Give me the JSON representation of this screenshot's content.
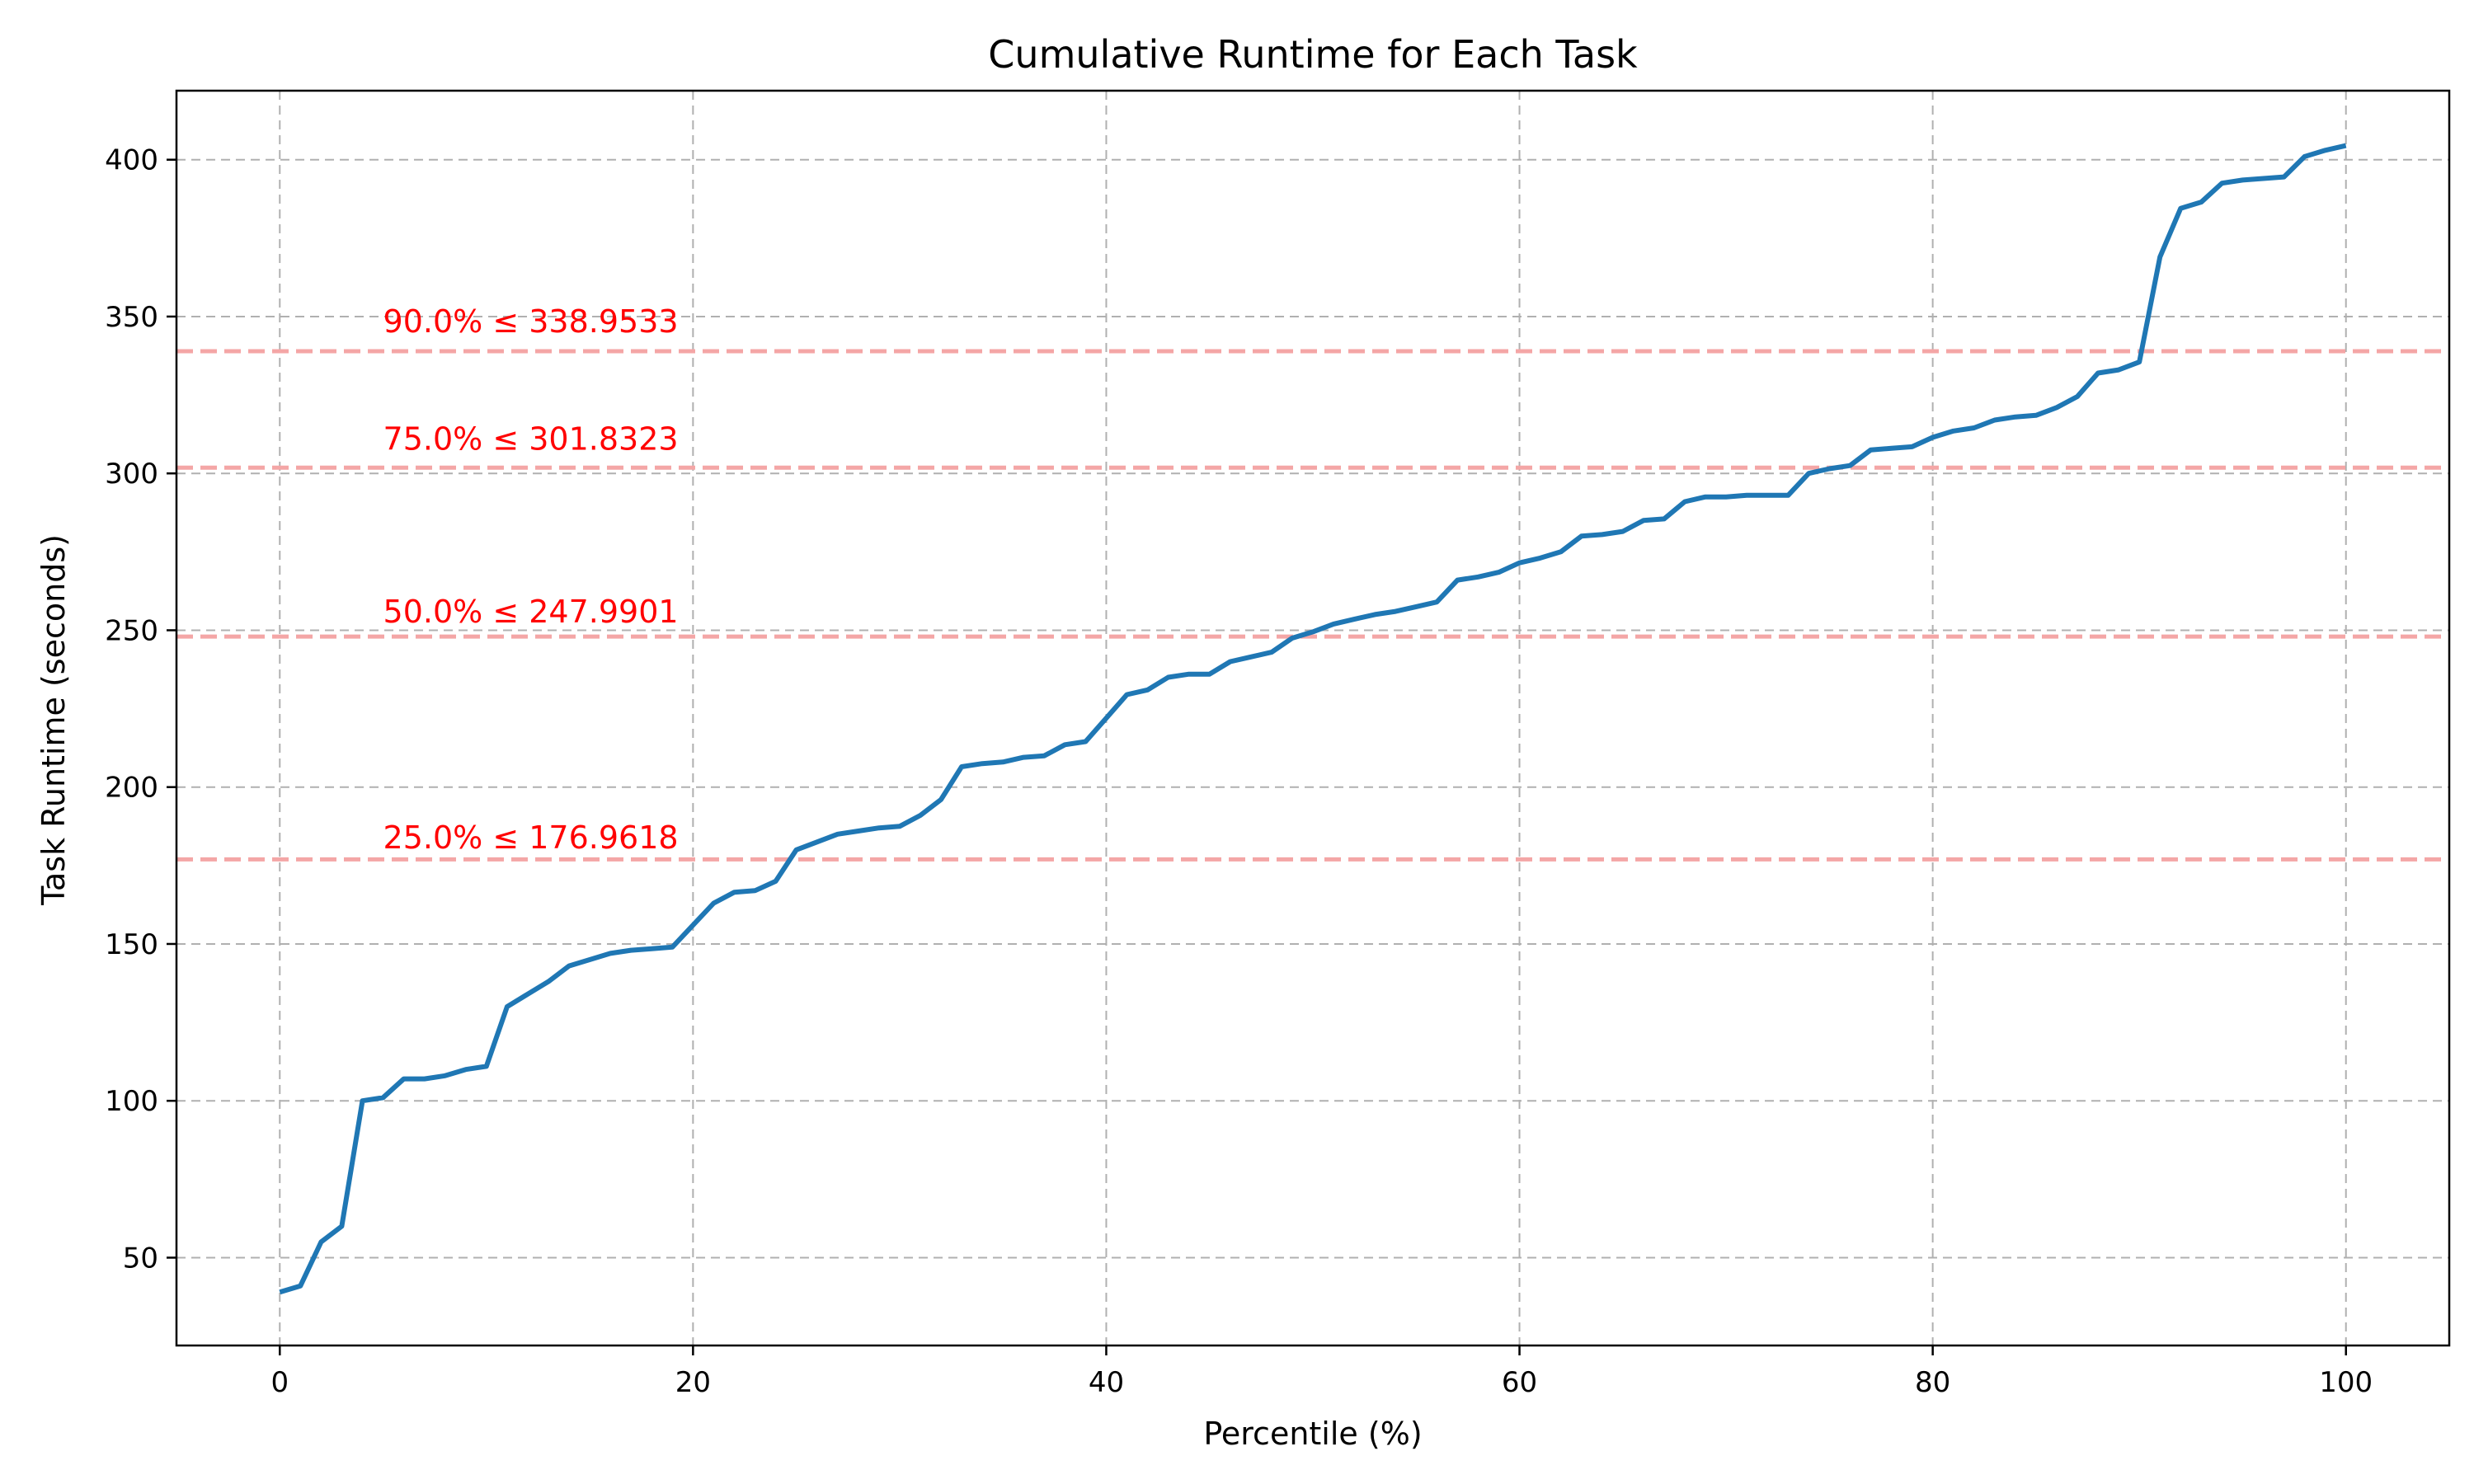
{
  "chart_data": {
    "type": "line",
    "title": "Cumulative Runtime for Each Task",
    "xlabel": "Percentile (%)",
    "ylabel": "Task Runtime (seconds)",
    "xlim": [
      -5,
      105
    ],
    "ylim": [
      22,
      422
    ],
    "x_ticks": [
      0,
      20,
      40,
      60,
      80,
      100
    ],
    "x_tick_labels": [
      "0",
      "20",
      "40",
      "60",
      "80",
      "100"
    ],
    "y_ticks": [
      50,
      100,
      150,
      200,
      250,
      300,
      350,
      400
    ],
    "y_tick_labels": [
      "50",
      "100",
      "150",
      "200",
      "250",
      "300",
      "350",
      "400"
    ],
    "grid": true,
    "grid_style": "dashed",
    "legend": "none",
    "series": [
      {
        "color": "#1f77b4",
        "x": [
          0,
          1,
          2,
          3,
          4,
          5,
          6,
          7,
          8,
          9,
          10,
          11,
          12,
          13,
          14,
          15,
          16,
          17,
          18,
          19,
          20,
          21,
          22,
          23,
          24,
          25,
          26,
          27,
          28,
          29,
          30,
          31,
          32,
          33,
          34,
          35,
          36,
          37,
          38,
          39,
          40,
          41,
          42,
          43,
          44,
          45,
          46,
          47,
          48,
          49,
          50,
          51,
          52,
          53,
          54,
          55,
          56,
          57,
          58,
          59,
          60,
          61,
          62,
          63,
          64,
          65,
          66,
          67,
          68,
          69,
          70,
          71,
          72,
          73,
          74,
          75,
          76,
          77,
          78,
          79,
          80,
          81,
          82,
          83,
          84,
          85,
          86,
          87,
          88,
          89,
          90,
          91,
          92,
          93,
          94,
          95,
          96,
          97,
          98,
          99,
          100
        ],
        "values": [
          39,
          41,
          55,
          60,
          100,
          101,
          107,
          107,
          108,
          110,
          111,
          130,
          134,
          138,
          143,
          145,
          147,
          148,
          148.5,
          149,
          156,
          163,
          166.5,
          167,
          170,
          180,
          182.5,
          185,
          186,
          187,
          187.5,
          191,
          196,
          206.5,
          207.5,
          208,
          209.5,
          210,
          213.5,
          214.5,
          222,
          229.5,
          231,
          235,
          236,
          236,
          240,
          241.5,
          243,
          247.5,
          249.5,
          252,
          253.5,
          255,
          256,
          257.5,
          259,
          266,
          267,
          268.5,
          271.5,
          273,
          275,
          280,
          280.5,
          281.5,
          285,
          285.5,
          291,
          292.5,
          292.5,
          293,
          293,
          293,
          300,
          301.5,
          302.5,
          307.5,
          308,
          308.5,
          311.5,
          313.5,
          314.5,
          317,
          318,
          318.5,
          321,
          324.5,
          332,
          333,
          335.5,
          369,
          384.5,
          386.5,
          392.5,
          393.5,
          394,
          394.5,
          401,
          403,
          404.5
        ]
      }
    ],
    "reference_lines": [
      {
        "y": 338.9533,
        "label": "90.0% ≤ 338.9533",
        "label_x": 5,
        "label_y": 345
      },
      {
        "y": 301.8323,
        "label": "75.0% ≤ 301.8323",
        "label_x": 5,
        "label_y": 307.5
      },
      {
        "y": 247.9901,
        "label": "50.0% ≤ 247.9901",
        "label_x": 5,
        "label_y": 252.5
      },
      {
        "y": 176.9618,
        "label": "25.0% ≤ 176.9618",
        "label_x": 5,
        "label_y": 180.5
      }
    ],
    "reference_line_color": "#f4a6a6",
    "annotation_color": "#ff0000"
  }
}
